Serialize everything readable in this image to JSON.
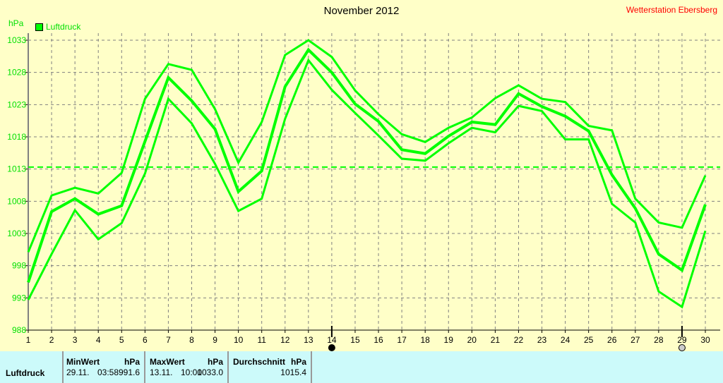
{
  "chart_data": {
    "type": "line",
    "title": "November 2012",
    "station": "Wetterstation Ebersberg",
    "ylabel": "hPa",
    "legend": "Luftdruck",
    "legend_placement": "top-left",
    "grid": true,
    "ylim": [
      988,
      1033
    ],
    "yticks": [
      988,
      993,
      998,
      1003,
      1008,
      1013,
      1018,
      1023,
      1028,
      1033
    ],
    "x": [
      1,
      2,
      3,
      4,
      5,
      6,
      7,
      8,
      9,
      10,
      11,
      12,
      13,
      14,
      15,
      16,
      17,
      18,
      19,
      20,
      21,
      22,
      23,
      24,
      25,
      26,
      27,
      28,
      29,
      30
    ],
    "color": "#00ff00",
    "average_line": 1013.3,
    "series": [
      {
        "values": [
          1000.1,
          1008.9,
          1010.1,
          1009.2,
          1012.4,
          1023.9,
          1029.3,
          1028.4,
          1022.3,
          1014.0,
          1020.3,
          1030.7,
          1033.0,
          1030.4,
          1025.2,
          1021.5,
          1018.4,
          1017.2,
          1019.4,
          1021.0,
          1024.0,
          1026.0,
          1023.9,
          1023.4,
          1019.7,
          1019.0,
          1008.4,
          1004.7,
          1003.9,
          1012.0
        ]
      },
      {
        "values": [
          995.4,
          1006.4,
          1008.4,
          1006.0,
          1007.3,
          1017.3,
          1027.2,
          1023.6,
          1019.2,
          1009.5,
          1012.7,
          1025.8,
          1031.5,
          1028.0,
          1023.1,
          1020.4,
          1016.0,
          1015.4,
          1018.1,
          1020.3,
          1019.9,
          1024.7,
          1022.7,
          1021.2,
          1018.9,
          1012.1,
          1006.9,
          999.8,
          997.3,
          1007.5
        ]
      },
      {
        "values": [
          992.7,
          999.8,
          1006.6,
          1002.1,
          1004.6,
          1012.3,
          1023.9,
          1020.1,
          1013.8,
          1006.5,
          1008.4,
          1020.8,
          1029.9,
          1025.3,
          1021.7,
          1018.2,
          1014.6,
          1014.3,
          1017.0,
          1019.4,
          1018.7,
          1022.8,
          1022.0,
          1017.6,
          1017.6,
          1007.6,
          1004.7,
          994.0,
          991.6,
          1003.4
        ]
      }
    ],
    "markers": [
      {
        "x": 14,
        "type": "filled-circle"
      },
      {
        "x": 29,
        "type": "open-circle"
      }
    ]
  },
  "table": {
    "row_label": "Luftdruck",
    "min": {
      "header": "MinWert",
      "unit": "hPa",
      "date": "29.11.",
      "time": "03:58",
      "value": "991.6"
    },
    "max": {
      "header": "MaxWert",
      "unit": "hPa",
      "date": "13.11.",
      "time": "10:00",
      "value": "1033.0"
    },
    "avg": {
      "header": "Durchschnitt",
      "unit": "hPa",
      "value": "1015.4"
    }
  }
}
